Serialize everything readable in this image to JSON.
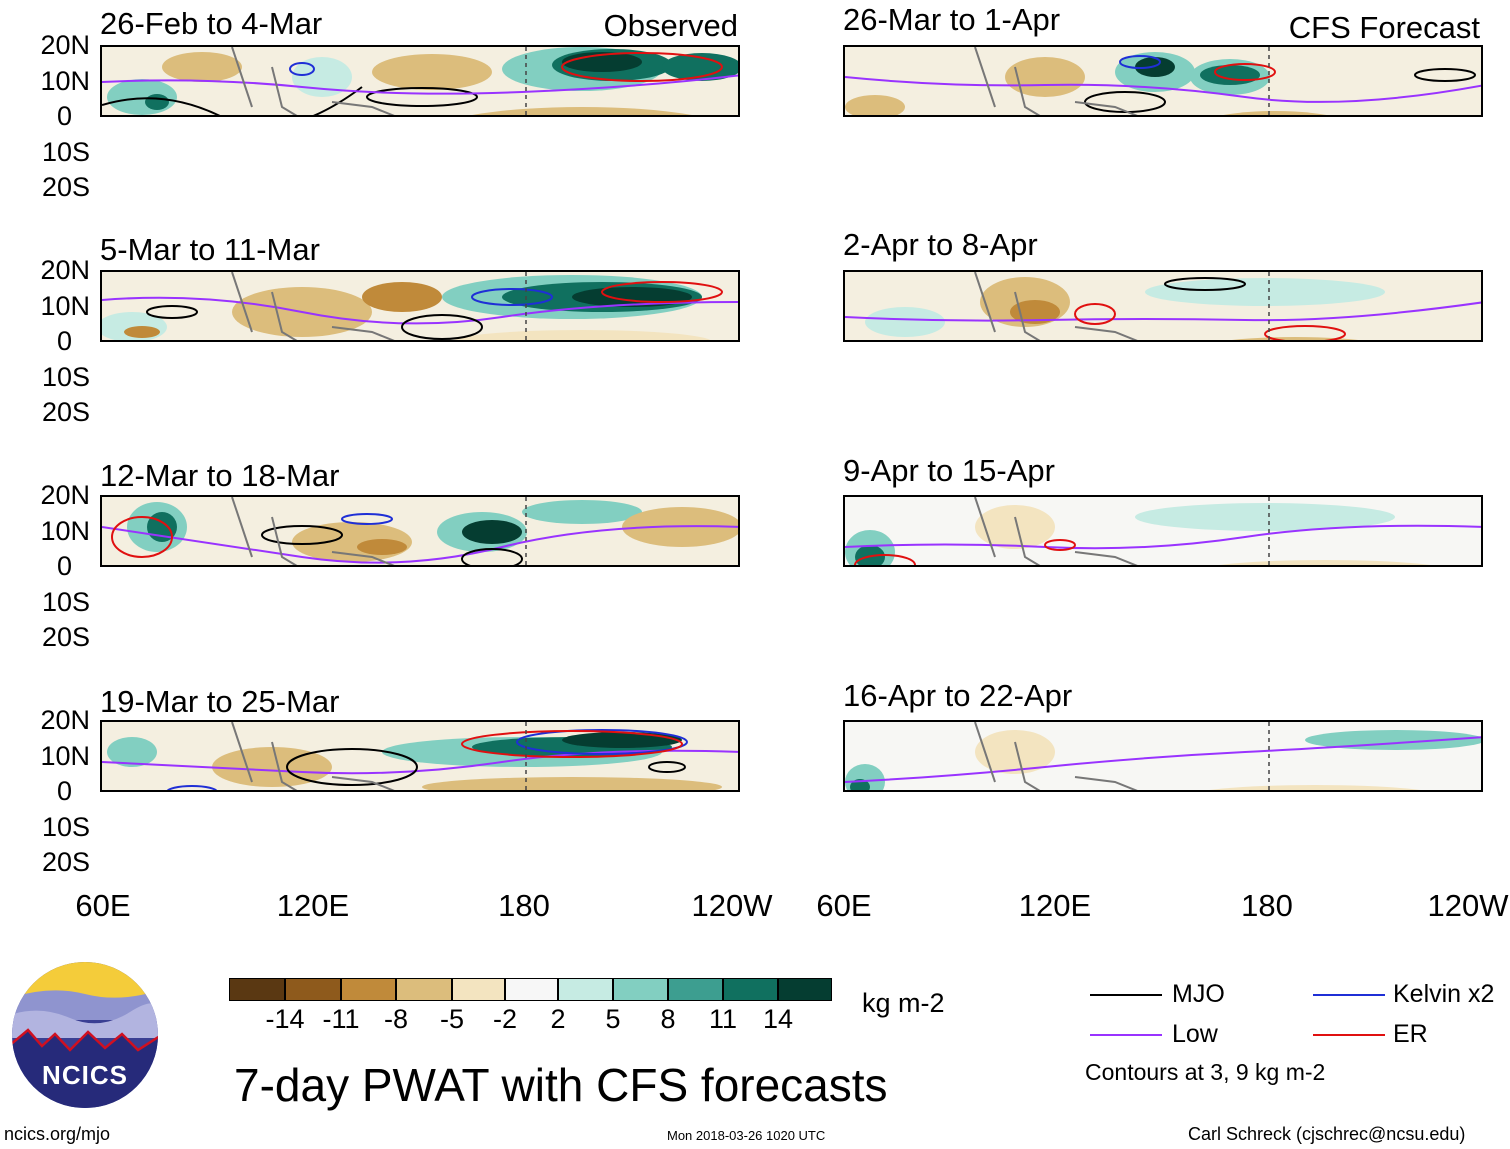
{
  "panels": [
    {
      "title": "26-Feb to 4-Mar",
      "label": "Observed"
    },
    {
      "title": "5-Mar to 11-Mar",
      "label": ""
    },
    {
      "title": "12-Mar to 18-Mar",
      "label": ""
    },
    {
      "title": "19-Mar to 25-Mar",
      "label": ""
    },
    {
      "title": "26-Mar to 1-Apr",
      "label": "CFS Forecast"
    },
    {
      "title": "2-Apr to 8-Apr",
      "label": ""
    },
    {
      "title": "9-Apr to 15-Apr",
      "label": ""
    },
    {
      "title": "16-Apr to 22-Apr",
      "label": ""
    }
  ],
  "y_axis": [
    "20N",
    "10N",
    "0",
    "10S",
    "20S"
  ],
  "x_axis": [
    "60E",
    "120E",
    "180",
    "120W"
  ],
  "colorbar": {
    "labels": [
      "-14",
      "-11",
      "-8",
      "-5",
      "-2",
      "2",
      "5",
      "8",
      "11",
      "14"
    ],
    "colors": [
      "#5a3812",
      "#8e5a1c",
      "#c08a3a",
      "#dcbd7c",
      "#f3e4c0",
      "#f7f7f7",
      "#c6ebe3",
      "#82cfc1",
      "#3d9e90",
      "#10705f",
      "#053d31"
    ],
    "units": "kg m-2"
  },
  "legend": {
    "mjo": "MJO",
    "low": "Low",
    "kelvin": "Kelvin x2",
    "er": "ER",
    "contours": "Contours at 3, 9 kg m-2",
    "colors": {
      "mjo": "#000000",
      "low": "#9933ff",
      "kelvin": "#1f2fd6",
      "er": "#e01010"
    }
  },
  "title": "7-day PWAT with CFS forecasts",
  "logo_text": "NCICS",
  "footer": {
    "url": "ncics.org/mjo",
    "timestamp": "Mon 2018-03-26 1020 UTC",
    "author": "Carl Schreck (cjschrec@ncsu.edu)"
  }
}
